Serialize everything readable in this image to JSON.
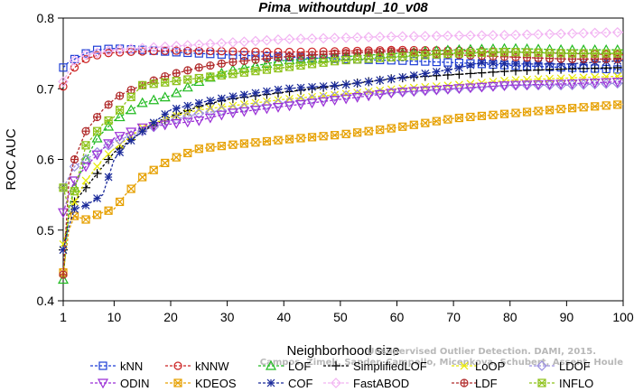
{
  "chart_data": {
    "type": "line",
    "title": "Pima_withoutdupl_10_v08",
    "xlabel": "Neighborhood size",
    "ylabel": "ROC AUC",
    "xlim": [
      1,
      100
    ],
    "ylim": [
      0.4,
      0.8
    ],
    "xticks": [
      1,
      10,
      20,
      30,
      40,
      50,
      60,
      70,
      80,
      90,
      100
    ],
    "yticks": [
      0.4,
      0.5,
      0.6,
      0.7,
      0.8
    ],
    "grid": false,
    "legend_position": "bottom",
    "watermark": [
      "Unsupervised Outlier Detection. DAMI, 2015.",
      "Campos, Zimek, Sander, Campello, Micenkova, Schubert, Assent, Houle"
    ],
    "series": [
      {
        "name": "kNN",
        "color": "#1f3fd6",
        "marker": "square",
        "points": [
          [
            1,
            0.73
          ],
          [
            2,
            0.738
          ],
          [
            3,
            0.742
          ],
          [
            5,
            0.75
          ],
          [
            7,
            0.755
          ],
          [
            10,
            0.757
          ],
          [
            15,
            0.755
          ],
          [
            20,
            0.752
          ],
          [
            30,
            0.748
          ],
          [
            40,
            0.745
          ],
          [
            50,
            0.742
          ],
          [
            60,
            0.74
          ],
          [
            70,
            0.737
          ],
          [
            80,
            0.733
          ],
          [
            90,
            0.73
          ],
          [
            100,
            0.727
          ]
        ]
      },
      {
        "name": "kNNW",
        "color": "#cc2222",
        "marker": "circle",
        "points": [
          [
            1,
            0.703
          ],
          [
            2,
            0.718
          ],
          [
            3,
            0.73
          ],
          [
            5,
            0.742
          ],
          [
            8,
            0.75
          ],
          [
            12,
            0.752
          ],
          [
            20,
            0.754
          ],
          [
            30,
            0.753
          ],
          [
            40,
            0.752
          ],
          [
            50,
            0.753
          ],
          [
            60,
            0.755
          ],
          [
            70,
            0.754
          ],
          [
            80,
            0.752
          ],
          [
            90,
            0.75
          ],
          [
            100,
            0.748
          ]
        ]
      },
      {
        "name": "LOF",
        "color": "#22bb22",
        "marker": "triangle-up",
        "points": [
          [
            1,
            0.43
          ],
          [
            2,
            0.53
          ],
          [
            3,
            0.56
          ],
          [
            5,
            0.6
          ],
          [
            7,
            0.63
          ],
          [
            10,
            0.655
          ],
          [
            15,
            0.68
          ],
          [
            20,
            0.69
          ],
          [
            25,
            0.71
          ],
          [
            30,
            0.725
          ],
          [
            40,
            0.74
          ],
          [
            50,
            0.745
          ],
          [
            60,
            0.75
          ],
          [
            70,
            0.755
          ],
          [
            80,
            0.757
          ],
          [
            90,
            0.755
          ],
          [
            100,
            0.755
          ]
        ]
      },
      {
        "name": "SimplifiedLOF",
        "color": "#000000",
        "marker": "plus",
        "points": [
          [
            1,
            0.472
          ],
          [
            2,
            0.52
          ],
          [
            3,
            0.54
          ],
          [
            5,
            0.56
          ],
          [
            8,
            0.59
          ],
          [
            10,
            0.61
          ],
          [
            15,
            0.64
          ],
          [
            20,
            0.66
          ],
          [
            25,
            0.675
          ],
          [
            30,
            0.685
          ],
          [
            40,
            0.695
          ],
          [
            50,
            0.705
          ],
          [
            60,
            0.715
          ],
          [
            70,
            0.72
          ],
          [
            80,
            0.725
          ],
          [
            90,
            0.728
          ],
          [
            100,
            0.73
          ]
        ]
      },
      {
        "name": "LoOP",
        "color": "#e8e800",
        "marker": "x",
        "points": [
          [
            1,
            0.48
          ],
          [
            2,
            0.52
          ],
          [
            3,
            0.54
          ],
          [
            5,
            0.57
          ],
          [
            8,
            0.6
          ],
          [
            10,
            0.615
          ],
          [
            15,
            0.645
          ],
          [
            20,
            0.66
          ],
          [
            25,
            0.67
          ],
          [
            30,
            0.675
          ],
          [
            40,
            0.685
          ],
          [
            50,
            0.692
          ],
          [
            60,
            0.7
          ],
          [
            70,
            0.705
          ],
          [
            80,
            0.712
          ],
          [
            90,
            0.715
          ],
          [
            100,
            0.718
          ]
        ]
      },
      {
        "name": "LDOF",
        "color": "#9b8fe0",
        "marker": "diamond",
        "points": [
          [
            1,
            0.56
          ],
          [
            2,
            0.575
          ],
          [
            3,
            0.59
          ],
          [
            5,
            0.6
          ],
          [
            8,
            0.615
          ],
          [
            10,
            0.625
          ],
          [
            15,
            0.64
          ],
          [
            20,
            0.655
          ],
          [
            25,
            0.665
          ],
          [
            30,
            0.67
          ],
          [
            40,
            0.68
          ],
          [
            50,
            0.69
          ],
          [
            60,
            0.695
          ],
          [
            70,
            0.7
          ],
          [
            80,
            0.705
          ],
          [
            90,
            0.705
          ],
          [
            100,
            0.708
          ]
        ]
      },
      {
        "name": "ODIN",
        "color": "#9b2fd6",
        "marker": "triangle-down",
        "points": [
          [
            1,
            0.525
          ],
          [
            2,
            0.55
          ],
          [
            3,
            0.57
          ],
          [
            5,
            0.59
          ],
          [
            8,
            0.615
          ],
          [
            10,
            0.63
          ],
          [
            15,
            0.645
          ],
          [
            20,
            0.65
          ],
          [
            25,
            0.655
          ],
          [
            30,
            0.665
          ],
          [
            40,
            0.675
          ],
          [
            50,
            0.685
          ],
          [
            60,
            0.695
          ],
          [
            70,
            0.7
          ],
          [
            80,
            0.705
          ],
          [
            90,
            0.707
          ],
          [
            100,
            0.71
          ]
        ]
      },
      {
        "name": "KDEOS",
        "color": "#e6a000",
        "marker": "square-x",
        "points": [
          [
            1,
            0.44
          ],
          [
            2,
            0.5
          ],
          [
            3,
            0.52
          ],
          [
            5,
            0.515
          ],
          [
            8,
            0.525
          ],
          [
            10,
            0.53
          ],
          [
            12,
            0.55
          ],
          [
            15,
            0.575
          ],
          [
            20,
            0.6
          ],
          [
            25,
            0.615
          ],
          [
            30,
            0.62
          ],
          [
            40,
            0.628
          ],
          [
            50,
            0.635
          ],
          [
            60,
            0.645
          ],
          [
            70,
            0.658
          ],
          [
            80,
            0.665
          ],
          [
            90,
            0.672
          ],
          [
            100,
            0.678
          ]
        ]
      },
      {
        "name": "COF",
        "color": "#1a2a9a",
        "marker": "asterisk",
        "points": [
          [
            1,
            0.472
          ],
          [
            2,
            0.505
          ],
          [
            3,
            0.53
          ],
          [
            5,
            0.535
          ],
          [
            8,
            0.55
          ],
          [
            10,
            0.6
          ],
          [
            12,
            0.62
          ],
          [
            15,
            0.64
          ],
          [
            20,
            0.67
          ],
          [
            25,
            0.68
          ],
          [
            30,
            0.688
          ],
          [
            40,
            0.7
          ],
          [
            50,
            0.705
          ],
          [
            60,
            0.715
          ],
          [
            70,
            0.728
          ],
          [
            75,
            0.737
          ],
          [
            80,
            0.735
          ],
          [
            90,
            0.735
          ],
          [
            100,
            0.74
          ]
        ]
      },
      {
        "name": "FastABOD",
        "color": "#f2b3f2",
        "marker": "diamond",
        "points": [
          [
            1,
            0.71
          ],
          [
            3,
            0.74
          ],
          [
            5,
            0.748
          ],
          [
            10,
            0.755
          ],
          [
            20,
            0.76
          ],
          [
            30,
            0.765
          ],
          [
            40,
            0.77
          ],
          [
            50,
            0.772
          ],
          [
            60,
            0.774
          ],
          [
            70,
            0.775
          ],
          [
            80,
            0.776
          ],
          [
            90,
            0.778
          ],
          [
            100,
            0.78
          ]
        ]
      },
      {
        "name": "LDF",
        "color": "#b02a2a",
        "marker": "circle-plus",
        "points": [
          [
            1,
            0.437
          ],
          [
            2,
            0.57
          ],
          [
            3,
            0.6
          ],
          [
            5,
            0.64
          ],
          [
            8,
            0.67
          ],
          [
            10,
            0.685
          ],
          [
            12,
            0.695
          ],
          [
            15,
            0.705
          ],
          [
            18,
            0.715
          ],
          [
            20,
            0.72
          ],
          [
            25,
            0.73
          ],
          [
            30,
            0.737
          ],
          [
            40,
            0.745
          ],
          [
            50,
            0.75
          ],
          [
            60,
            0.753
          ],
          [
            70,
            0.748
          ],
          [
            80,
            0.745
          ],
          [
            90,
            0.742
          ],
          [
            100,
            0.742
          ]
        ]
      },
      {
        "name": "INFLO",
        "color": "#8ec21a",
        "marker": "square-asterisk",
        "points": [
          [
            1,
            0.56
          ],
          [
            2,
            0.53
          ],
          [
            3,
            0.555
          ],
          [
            5,
            0.62
          ],
          [
            8,
            0.65
          ],
          [
            10,
            0.66
          ],
          [
            12,
            0.68
          ],
          [
            15,
            0.705
          ],
          [
            20,
            0.71
          ],
          [
            25,
            0.715
          ],
          [
            30,
            0.72
          ],
          [
            40,
            0.73
          ],
          [
            50,
            0.74
          ],
          [
            60,
            0.745
          ],
          [
            70,
            0.75
          ],
          [
            80,
            0.752
          ],
          [
            90,
            0.75
          ],
          [
            100,
            0.75
          ]
        ]
      }
    ]
  }
}
